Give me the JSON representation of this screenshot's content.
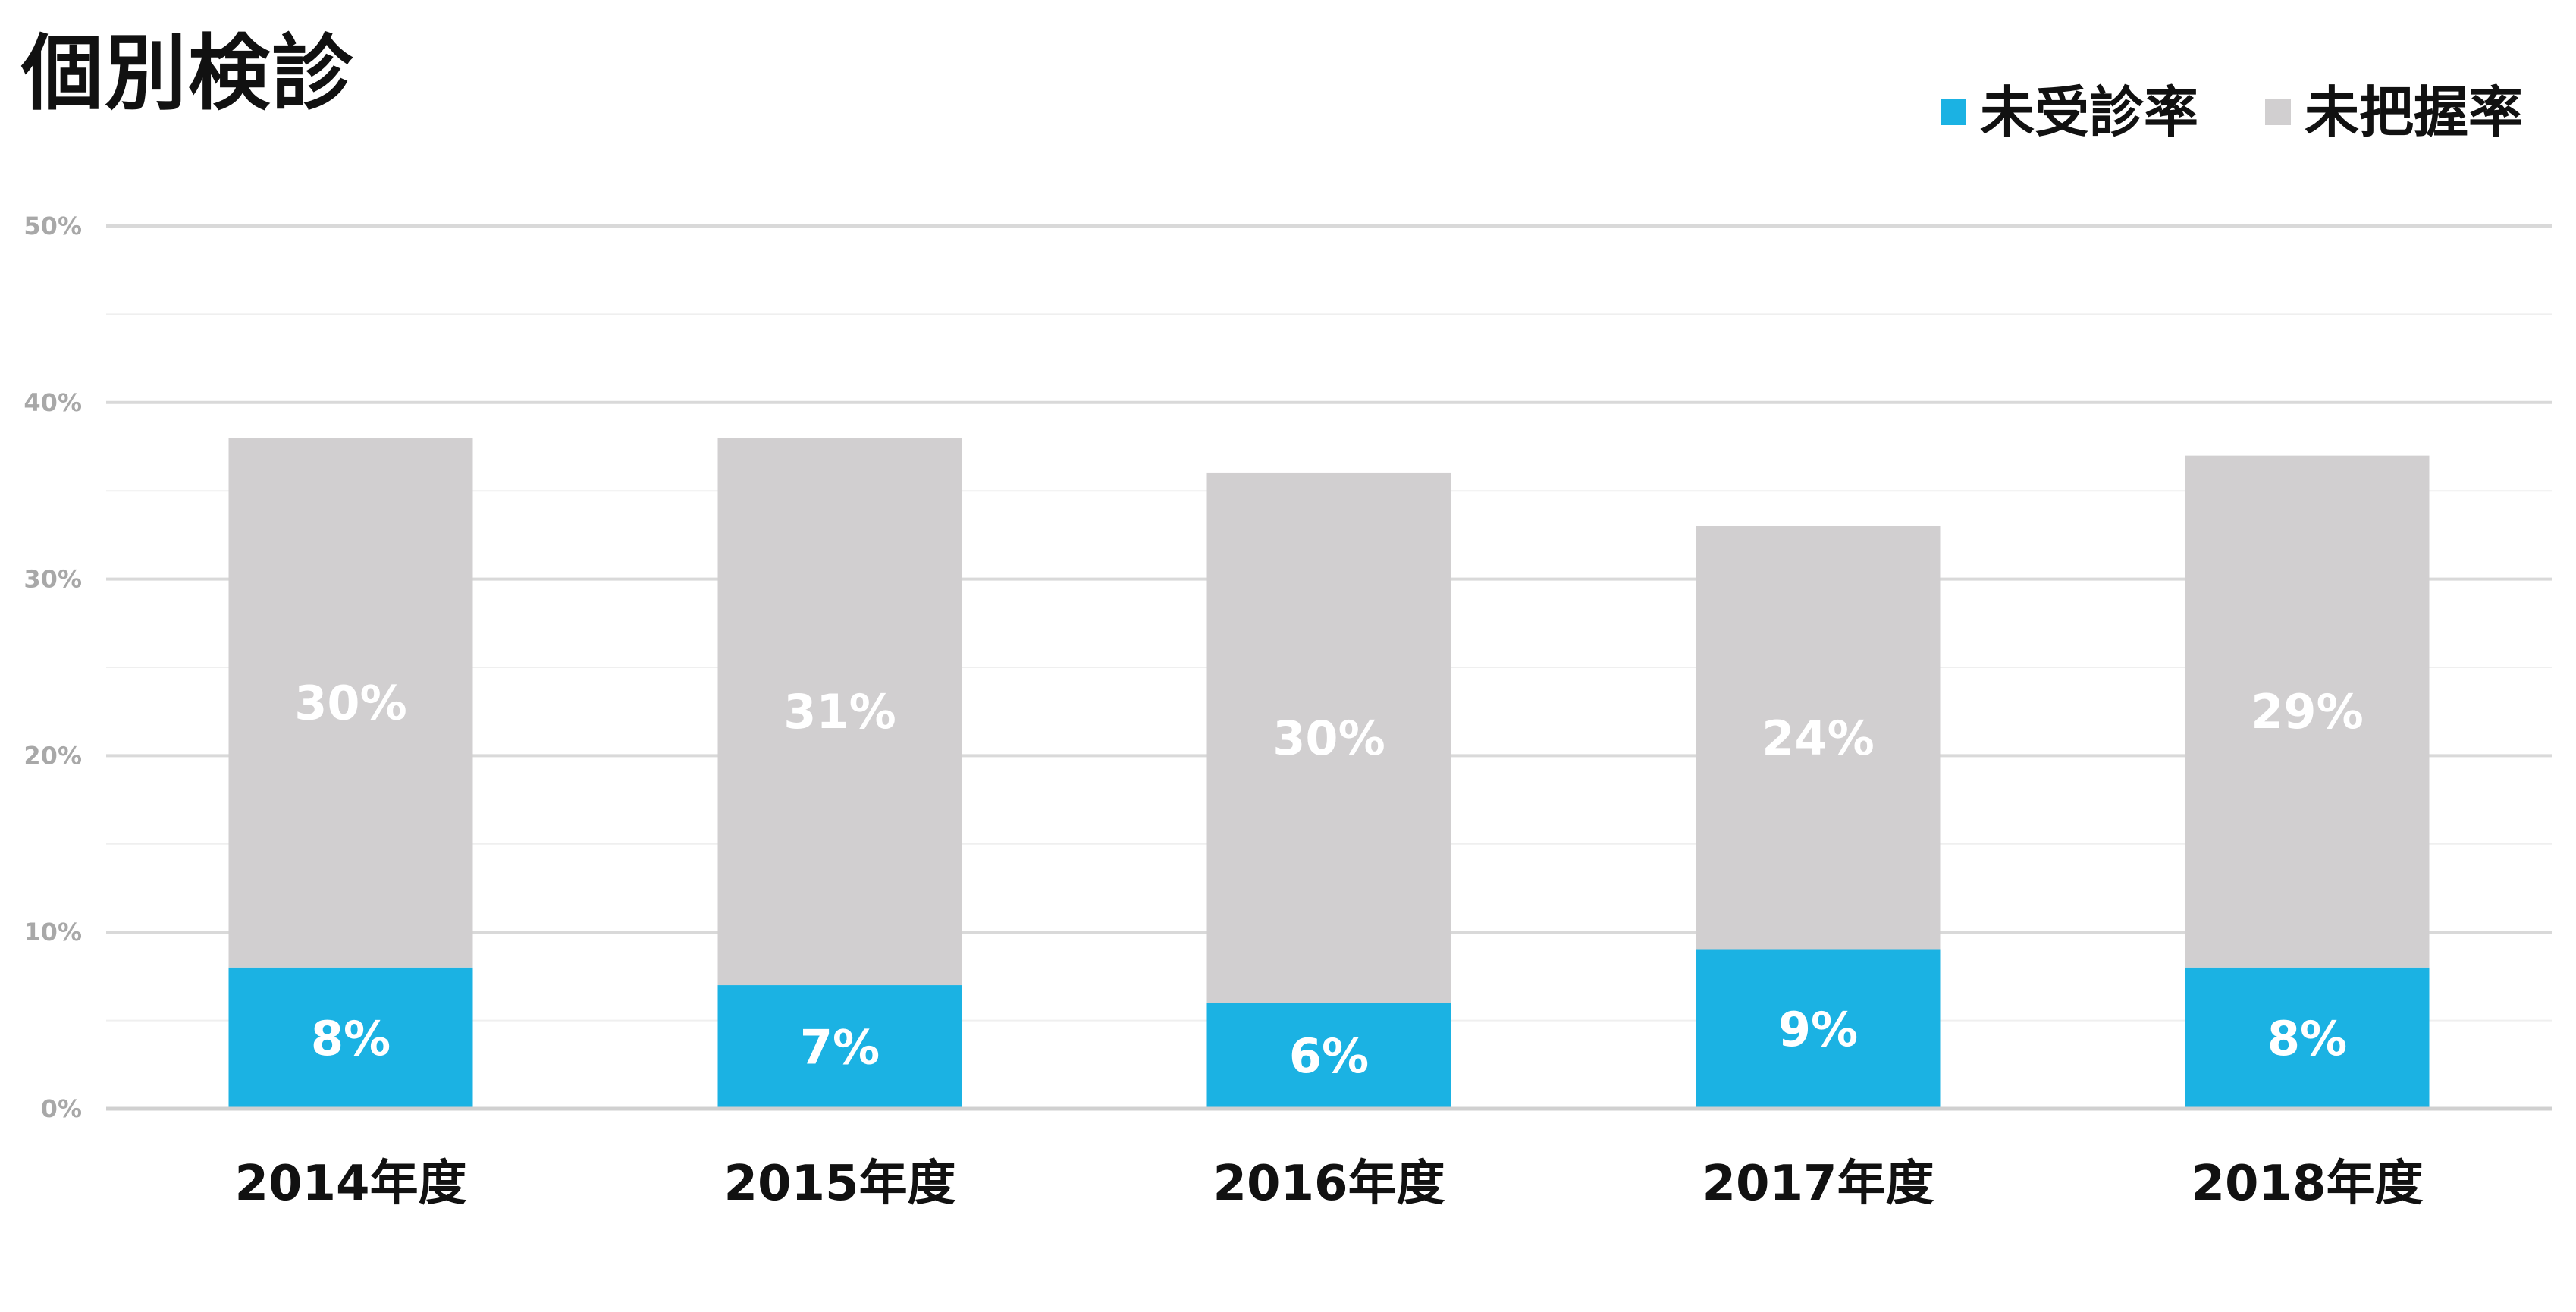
{
  "title": "個別検診",
  "legend": [
    {
      "label": "未受診率",
      "color": "#1BB2E3"
    },
    {
      "label": "未把握率",
      "color": "#D1CFD0"
    }
  ],
  "chart_data": {
    "type": "bar",
    "stacked": true,
    "title": "個別検診",
    "categories": [
      "2014年度",
      "2015年度",
      "2016年度",
      "2017年度",
      "2018年度"
    ],
    "series": [
      {
        "name": "未受診率",
        "color": "#1BB2E3",
        "values": [
          8,
          7,
          6,
          9,
          8
        ],
        "labels": [
          "8%",
          "7%",
          "6%",
          "9%",
          "8%"
        ]
      },
      {
        "name": "未把握率",
        "color": "#D1CFD0",
        "values": [
          30,
          31,
          30,
          24,
          29
        ],
        "labels": [
          "30%",
          "31%",
          "30%",
          "24%",
          "29%"
        ]
      }
    ],
    "y_ticks": [
      "0%",
      "10%",
      "20%",
      "30%",
      "40%",
      "50%"
    ],
    "ylim": [
      0,
      50
    ],
    "grid": true,
    "legend_position": "top-right"
  }
}
